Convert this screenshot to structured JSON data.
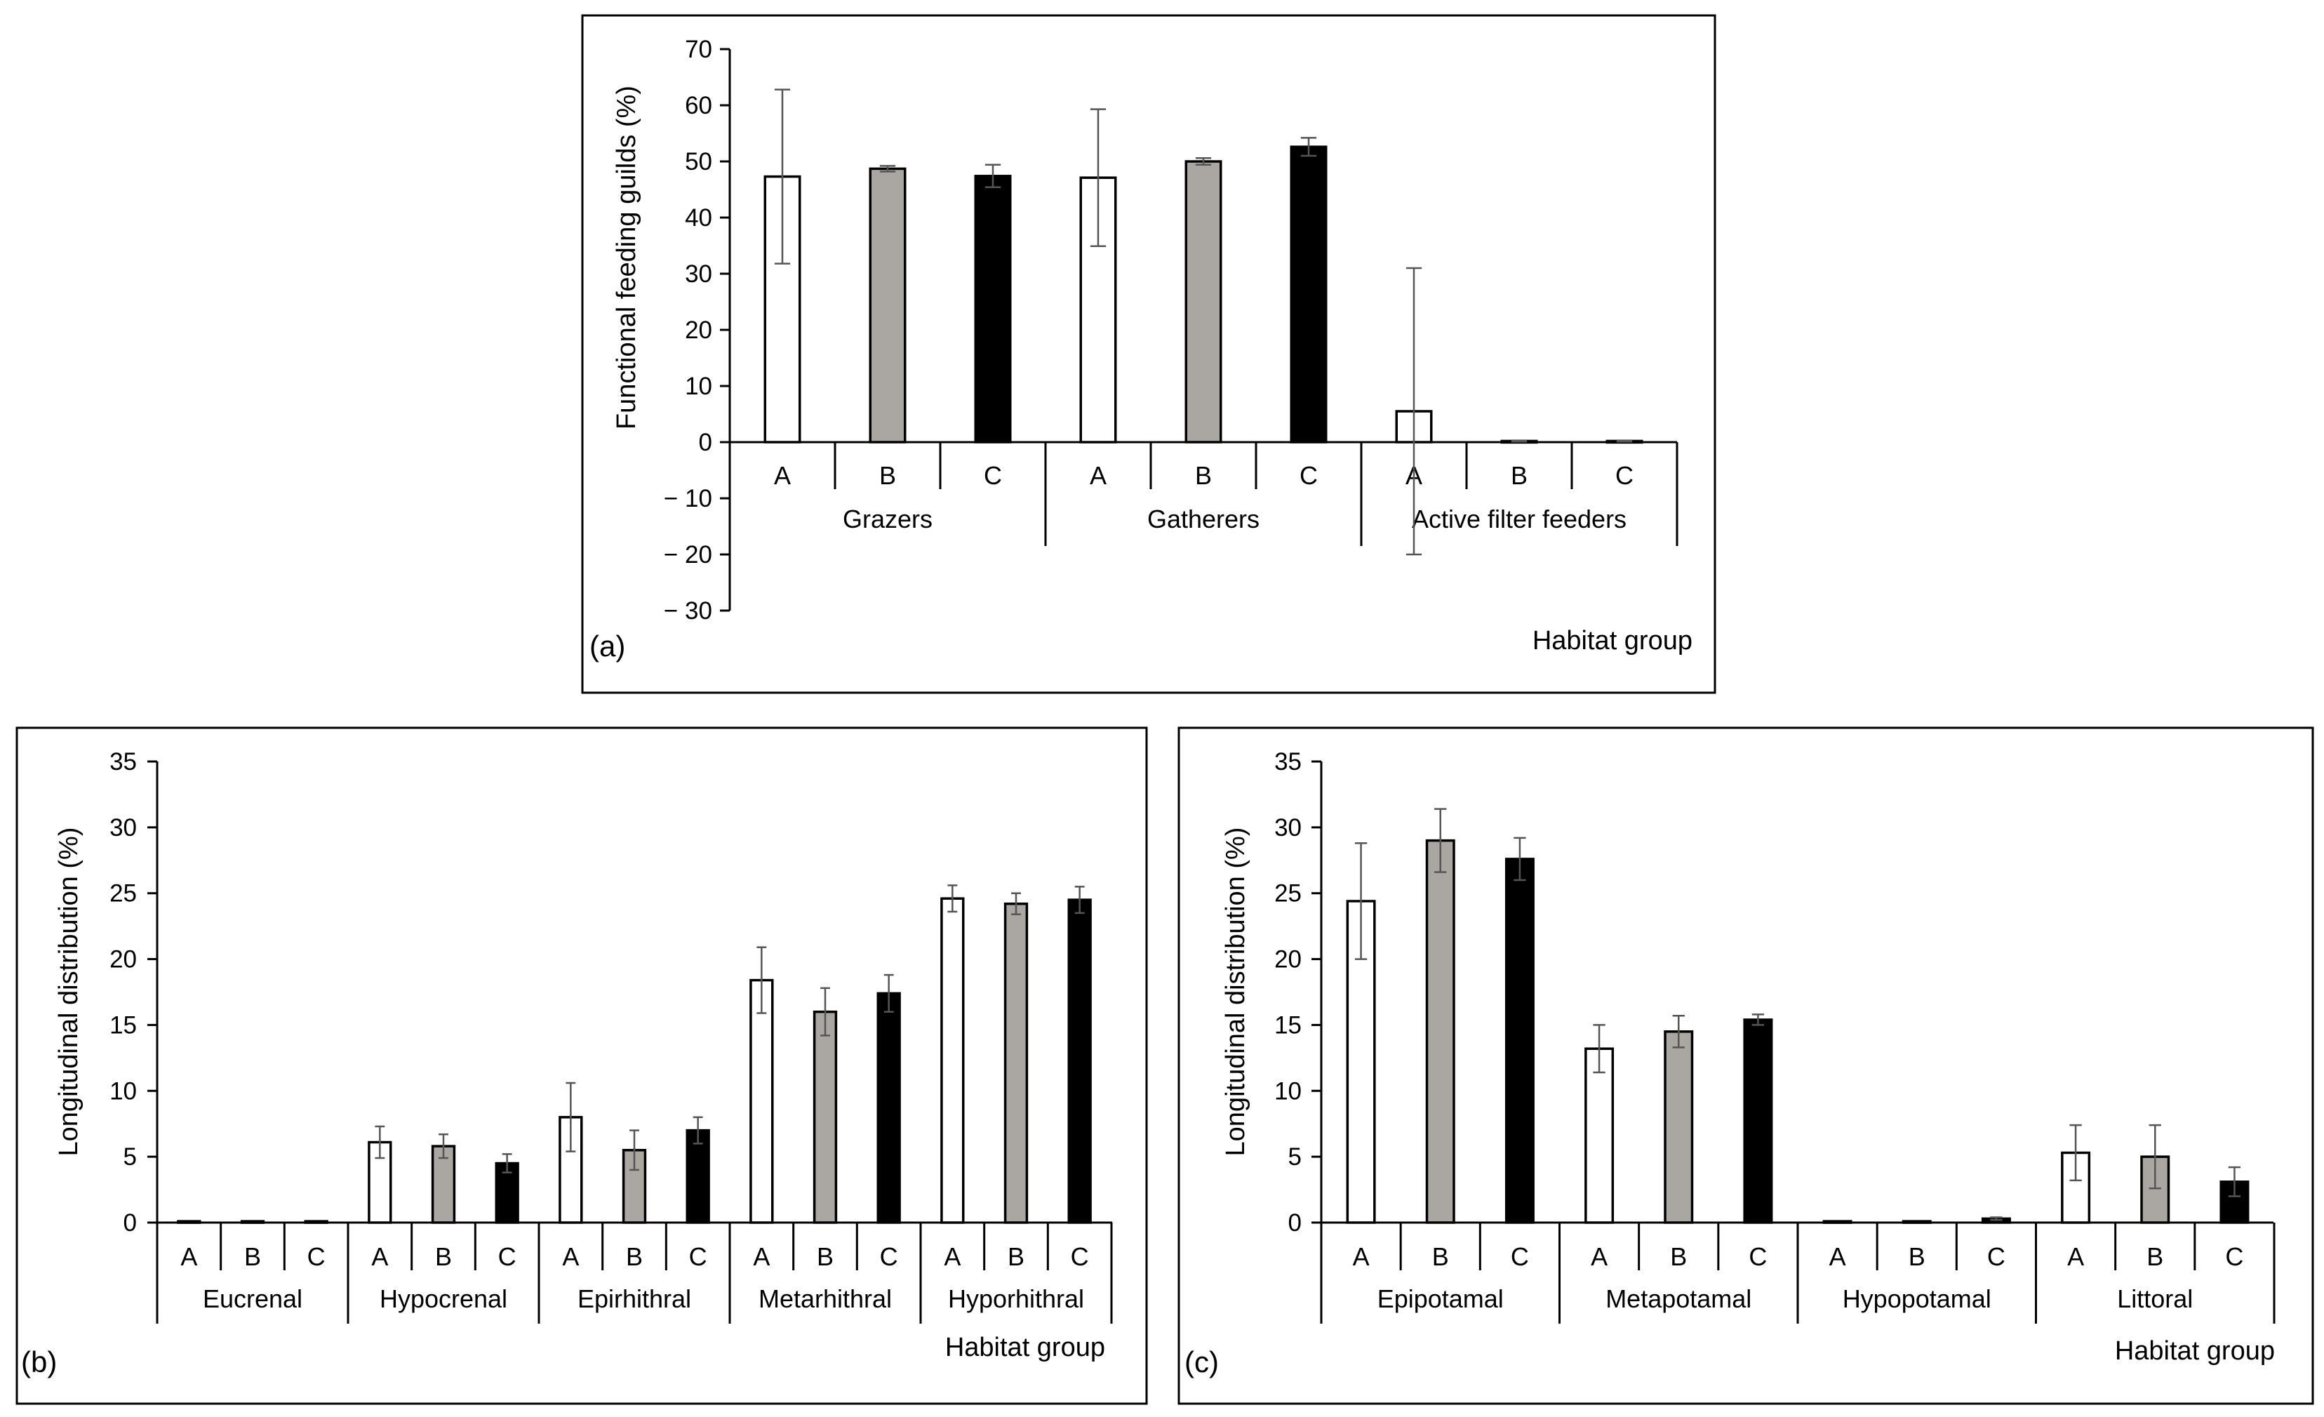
{
  "colors": {
    "A": "#ffffff",
    "B": "#aaa6a2",
    "C": "#000000",
    "stroke": "#000000"
  },
  "chart_data": [
    {
      "id": "a",
      "type": "bar",
      "panel_label": "(a)",
      "title": "",
      "ylabel": "Functional feeding guilds (%)",
      "xlabel": "Habitat group",
      "ylim": [
        -30,
        70
      ],
      "yticks": [
        "70",
        "60",
        "50",
        "40",
        "30",
        "20",
        "10",
        "0",
        "− 10",
        "− 20",
        "− 30"
      ],
      "groups": [
        "Grazers",
        "Gatherers",
        "Active filter feeders"
      ],
      "series": [
        {
          "name": "A",
          "values": [
            47.3,
            47.1,
            5.5
          ],
          "errors": [
            15.5,
            12.2,
            25.5
          ]
        },
        {
          "name": "B",
          "values": [
            48.7,
            50.0,
            0.2
          ],
          "errors": [
            0.5,
            0.6,
            0.1
          ]
        },
        {
          "name": "C",
          "values": [
            47.4,
            52.6,
            0.2
          ],
          "errors": [
            2.0,
            1.6,
            0.1
          ]
        }
      ]
    },
    {
      "id": "b",
      "type": "bar",
      "panel_label": "(b)",
      "title": "",
      "ylabel": "Longitudinal distribution (%)",
      "xlabel": "Habitat group",
      "ylim": [
        0,
        35
      ],
      "yticks": [
        "35",
        "30",
        "25",
        "20",
        "15",
        "10",
        "5",
        "0"
      ],
      "groups": [
        "Eucrenal",
        "Hypocrenal",
        "Epirhithral",
        "Metarhithral",
        "Hyporhithral"
      ],
      "series": [
        {
          "name": "A",
          "values": [
            0.1,
            6.1,
            8.0,
            18.4,
            24.6
          ],
          "errors": [
            0.0,
            1.2,
            2.6,
            2.5,
            1.0
          ]
        },
        {
          "name": "B",
          "values": [
            0.1,
            5.8,
            5.5,
            16.0,
            24.2
          ],
          "errors": [
            0.0,
            0.9,
            1.5,
            1.8,
            0.8
          ]
        },
        {
          "name": "C",
          "values": [
            0.1,
            4.5,
            7.0,
            17.4,
            24.5
          ],
          "errors": [
            0.0,
            0.7,
            1.0,
            1.4,
            1.0
          ]
        }
      ]
    },
    {
      "id": "c",
      "type": "bar",
      "panel_label": "(c)",
      "title": "",
      "ylabel": "Longitudinal distribution (%)",
      "xlabel": "Habitat group",
      "ylim": [
        0,
        35
      ],
      "yticks": [
        "35",
        "30",
        "25",
        "20",
        "15",
        "10",
        "5",
        "0"
      ],
      "groups": [
        "Epipotamal",
        "Metapotamal",
        "Hypopotamal",
        "Littoral"
      ],
      "series": [
        {
          "name": "A",
          "values": [
            24.4,
            13.2,
            0.1,
            5.3
          ],
          "errors": [
            4.4,
            1.8,
            0.0,
            2.1
          ]
        },
        {
          "name": "B",
          "values": [
            29.0,
            14.5,
            0.1,
            5.0
          ],
          "errors": [
            2.4,
            1.2,
            0.0,
            2.4
          ]
        },
        {
          "name": "C",
          "values": [
            27.6,
            15.4,
            0.3,
            3.1
          ],
          "errors": [
            1.6,
            0.4,
            0.1,
            1.1
          ]
        }
      ]
    }
  ]
}
